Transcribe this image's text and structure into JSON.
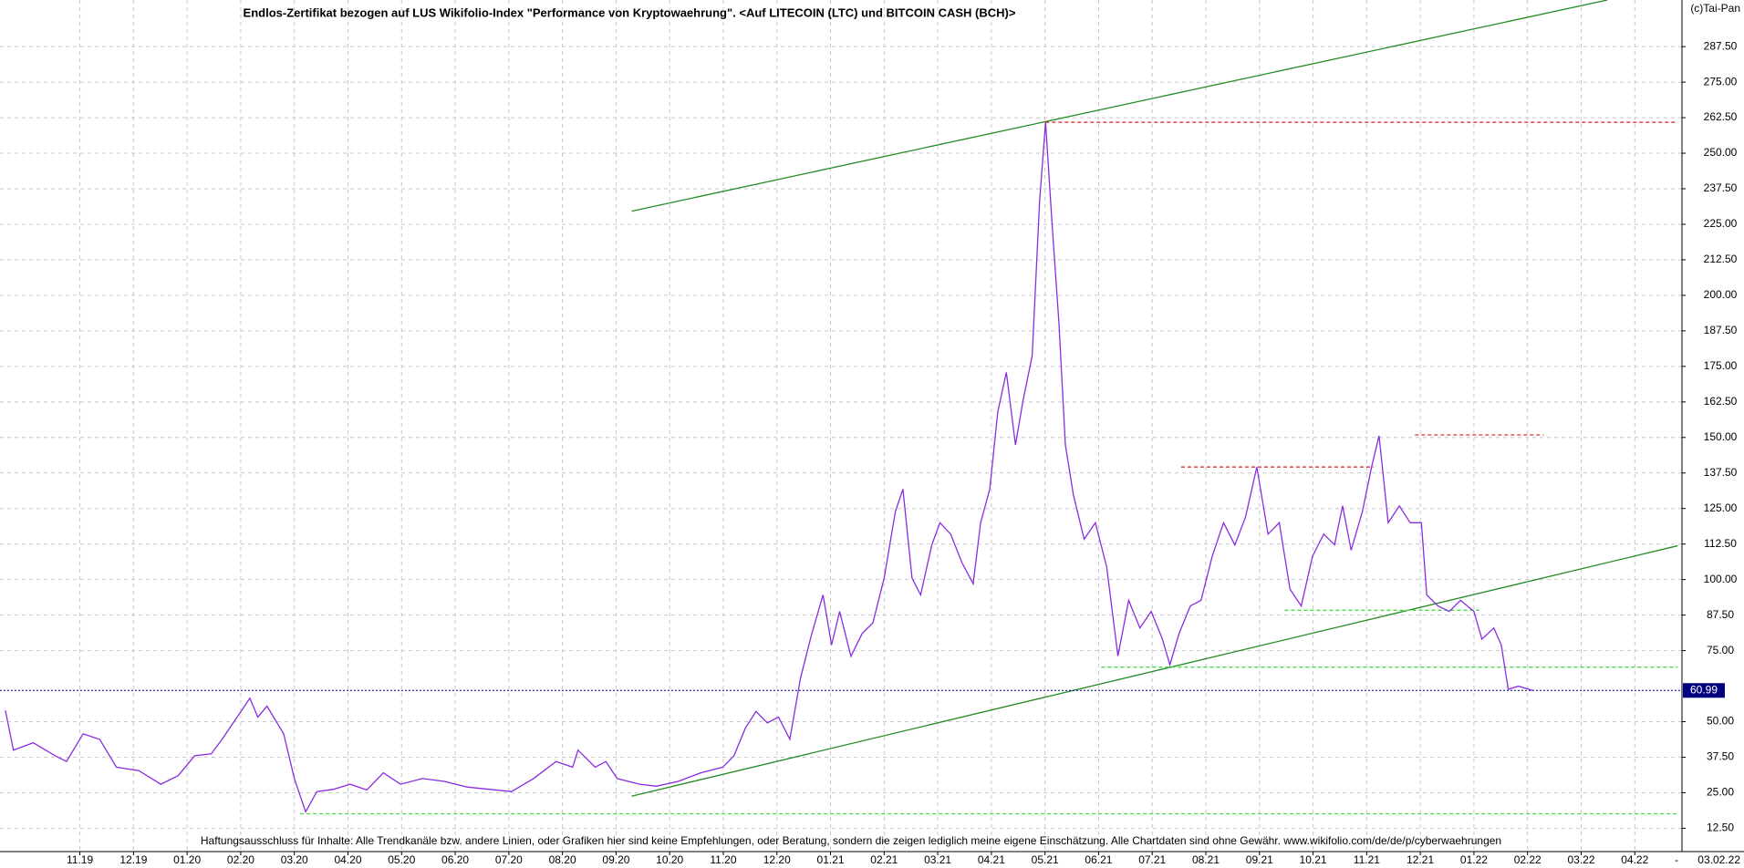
{
  "chart_data": {
    "type": "line",
    "title": "Endlos-Zertifikat bezogen auf LUS Wikifolio-Index \"Performance von Kryptowaehrung\". <Auf LITECOIN (LTC) und BITCOIN CASH (BCH)>",
    "copyright": "(c)Tai-Pan",
    "footnote": "Haftungsausschluss für Inhalte: Alle Trendkanäle bzw. andere Linien, oder Grafiken hier sind keine Empfehlungen, oder Beratung, sondern die zeigen lediglich meine eigene Einschätzung. Alle Chartdaten sind ohne Gewähr.  www.wikifolio.com/de/de/p/cyberwaehrungen",
    "xlim": [
      -1.49,
      29.88
    ],
    "ylim": [
      4.3,
      303.9
    ],
    "grid": true,
    "xticks": [
      {
        "value": 0,
        "label": "11.19"
      },
      {
        "value": 1,
        "label": "12.19"
      },
      {
        "value": 2,
        "label": "01.20"
      },
      {
        "value": 3,
        "label": "02.20"
      },
      {
        "value": 4,
        "label": "03.20"
      },
      {
        "value": 5,
        "label": "04.20"
      },
      {
        "value": 6,
        "label": "05.20"
      },
      {
        "value": 7,
        "label": "06.20"
      },
      {
        "value": 8,
        "label": "07.20"
      },
      {
        "value": 9,
        "label": "08.20"
      },
      {
        "value": 10,
        "label": "09.20"
      },
      {
        "value": 11,
        "label": "10.20"
      },
      {
        "value": 12,
        "label": "11.20"
      },
      {
        "value": 13,
        "label": "12.20"
      },
      {
        "value": 14,
        "label": "01.21"
      },
      {
        "value": 15,
        "label": "02.21"
      },
      {
        "value": 16,
        "label": "03.21"
      },
      {
        "value": 17,
        "label": "04.21"
      },
      {
        "value": 18,
        "label": "05.21"
      },
      {
        "value": 19,
        "label": "06.21"
      },
      {
        "value": 20,
        "label": "07.21"
      },
      {
        "value": 21,
        "label": "08.21"
      },
      {
        "value": 22,
        "label": "09.21"
      },
      {
        "value": 23,
        "label": "10.21"
      },
      {
        "value": 24,
        "label": "11.21"
      },
      {
        "value": 25,
        "label": "12.21"
      },
      {
        "value": 26,
        "label": "01.22"
      },
      {
        "value": 27,
        "label": "02.22"
      },
      {
        "value": 28,
        "label": "03.22"
      },
      {
        "value": 29,
        "label": "04.22"
      }
    ],
    "x_end_marker": "-",
    "date_label": "03.02.22",
    "yticks": [
      {
        "value": 12.5,
        "label": "12.50"
      },
      {
        "value": 25,
        "label": "25.00"
      },
      {
        "value": 37.5,
        "label": "37.50"
      },
      {
        "value": 50,
        "label": "50.00"
      },
      {
        "value": 75,
        "label": "75.00"
      },
      {
        "value": 87.5,
        "label": "87.50"
      },
      {
        "value": 100,
        "label": "100.00"
      },
      {
        "value": 112.5,
        "label": "112.50"
      },
      {
        "value": 125,
        "label": "125.00"
      },
      {
        "value": 137.5,
        "label": "137.50"
      },
      {
        "value": 150,
        "label": "150.00"
      },
      {
        "value": 162.5,
        "label": "162.50"
      },
      {
        "value": 175,
        "label": "175.00"
      },
      {
        "value": 187.5,
        "label": "187.50"
      },
      {
        "value": 200,
        "label": "200.00"
      },
      {
        "value": 212.5,
        "label": "212.50"
      },
      {
        "value": 225,
        "label": "225.00"
      },
      {
        "value": 237.5,
        "label": "237.50"
      },
      {
        "value": 250,
        "label": "250.00"
      },
      {
        "value": 262.5,
        "label": "262.50"
      },
      {
        "value": 275,
        "label": "275.00"
      },
      {
        "value": 287.5,
        "label": "287.50"
      }
    ],
    "last_value": {
      "value": 60.99,
      "label": "60.99",
      "color": "#000080"
    },
    "series": [
      {
        "color": "#8a2be2",
        "x": [
          -1.39,
          -1.24,
          -0.87,
          -0.46,
          -0.25,
          0.06,
          0.37,
          0.68,
          1.1,
          1.51,
          1.83,
          2.14,
          2.45,
          2.66,
          2.86,
          3.03,
          3.17,
          3.32,
          3.49,
          3.8,
          4.0,
          4.21,
          4.42,
          4.73,
          5.04,
          5.35,
          5.66,
          5.98,
          6.39,
          6.8,
          7.22,
          7.63,
          8.05,
          8.46,
          8.88,
          9.19,
          9.29,
          9.61,
          9.81,
          10.02,
          10.44,
          10.75,
          11.16,
          11.58,
          11.99,
          12.2,
          12.41,
          12.61,
          12.82,
          13.03,
          13.24,
          13.44,
          13.65,
          13.86,
          14.02,
          14.17,
          14.38,
          14.59,
          14.79,
          15.0,
          15.21,
          15.35,
          15.52,
          15.68,
          15.89,
          16.04,
          16.24,
          16.45,
          16.66,
          16.8,
          16.97,
          17.12,
          17.28,
          17.45,
          17.59,
          17.76,
          17.9,
          18.01,
          18.13,
          18.26,
          18.38,
          18.53,
          18.73,
          18.94,
          19.15,
          19.36,
          19.56,
          19.77,
          19.98,
          20.19,
          20.33,
          20.5,
          20.71,
          20.91,
          21.12,
          21.33,
          21.54,
          21.74,
          21.95,
          22.16,
          22.37,
          22.57,
          22.78,
          22.99,
          23.2,
          23.4,
          23.55,
          23.71,
          23.92,
          24.09,
          24.23,
          24.4,
          24.61,
          24.81,
          25.02,
          25.12,
          25.33,
          25.54,
          25.75,
          26.0,
          26.15,
          26.37,
          26.51,
          26.64,
          26.83,
          27.1
        ],
        "values": [
          54,
          40,
          42.6,
          38,
          36,
          45.7,
          43.8,
          34,
          32.8,
          28,
          31,
          38,
          38.7,
          44,
          49.6,
          54.3,
          58.3,
          51.6,
          55.5,
          45.7,
          30,
          18.3,
          25.4,
          26.2,
          28,
          26,
          32,
          28,
          30,
          29,
          27,
          26.2,
          25.4,
          30,
          36,
          34,
          40,
          34,
          36,
          30,
          28,
          27.3,
          29,
          32,
          34,
          38,
          47.7,
          53.6,
          49.6,
          51.6,
          43.8,
          65.3,
          81,
          94.6,
          77,
          88.8,
          73,
          81,
          84.8,
          100.5,
          124,
          131.8,
          100.5,
          94.6,
          112.2,
          120,
          116,
          106,
          98.5,
          120,
          131.8,
          159,
          172.9,
          147.4,
          163,
          178.7,
          233.5,
          260.9,
          225.7,
          190.5,
          147.4,
          129.8,
          114.2,
          120,
          104.4,
          73.1,
          92.7,
          83,
          88.8,
          79,
          70,
          81,
          90.7,
          92.7,
          108.3,
          120,
          112.2,
          122,
          139.6,
          116,
          120,
          96.6,
          90.7,
          108.3,
          116,
          112.2,
          125.9,
          110.3,
          124,
          139.6,
          150.6,
          120,
          125.9,
          120,
          120,
          94.6,
          90.7,
          88.8,
          92.7,
          88.8,
          79,
          83,
          77,
          61.4,
          62.5,
          61
        ]
      }
    ],
    "trendlines": [
      {
        "x": [
          10.29,
          28.49
        ],
        "y": [
          229.6,
          303.9
        ],
        "color": "#228b22",
        "dashed": false
      },
      {
        "x": [
          10.29,
          29.8
        ],
        "y": [
          23.8,
          111.9
        ],
        "color": "#228b22",
        "dashed": false
      },
      {
        "x": [
          18.01,
          29.8
        ],
        "y": [
          260.9,
          260.9
        ],
        "color": "#e03030",
        "dashed": true
      },
      {
        "x": [
          20.54,
          24.13
        ],
        "y": [
          139.6,
          139.6
        ],
        "color": "#e03030",
        "dashed": true
      },
      {
        "x": [
          24.9,
          27.3
        ],
        "y": [
          150.9,
          150.9
        ],
        "color": "#e03030",
        "dashed": true
      },
      {
        "x": [
          22.47,
          26.1
        ],
        "y": [
          89.2,
          89.2
        ],
        "color": "#44dd44",
        "dashed": true
      },
      {
        "x": [
          19.05,
          29.8
        ],
        "y": [
          69.2,
          69.2
        ],
        "color": "#44dd44",
        "dashed": true
      },
      {
        "x": [
          4.11,
          29.8
        ],
        "y": [
          17.6,
          17.6
        ],
        "color": "#44dd44",
        "dashed": true
      }
    ]
  }
}
